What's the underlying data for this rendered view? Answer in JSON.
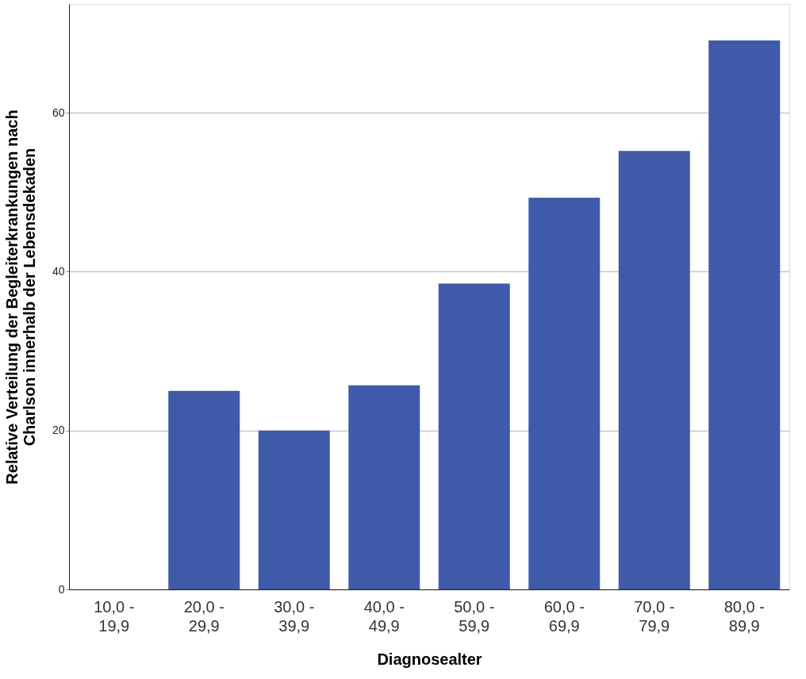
{
  "chart_data": {
    "type": "bar",
    "xlabel": "Diagnosealter",
    "ylabel": "Relative Verteilung der Begleiterkrankungen nach\nCharlson innerhalb der Lebensdekaden",
    "categories": [
      "10,0 -\n19,9",
      "20,0 -\n29,9",
      "30,0 -\n39,9",
      "40,0 -\n49,9",
      "50,0 -\n59,9",
      "60,0 -\n69,9",
      "70,0 -\n79,9",
      "80,0 -\n89,9"
    ],
    "values": [
      0,
      25,
      20,
      25.7,
      38.5,
      49.3,
      55.2,
      69.1
    ],
    "color": "#3f5aa8",
    "ylim": [
      0,
      73.7
    ],
    "yticks": [
      0,
      20,
      40,
      60
    ],
    "grid": "y"
  }
}
